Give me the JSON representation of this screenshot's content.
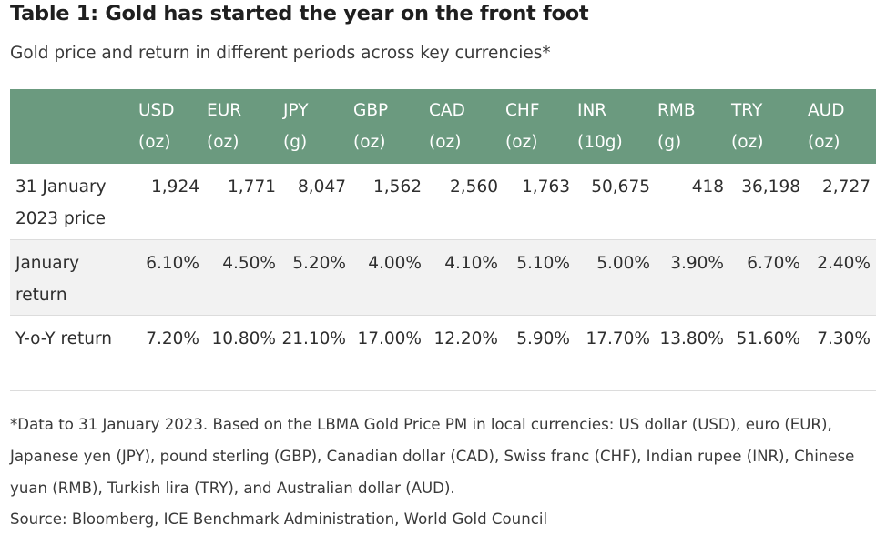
{
  "title": "Table 1: Gold has started the year on the front foot",
  "subtitle": "Gold price and return in different periods across key currencies*",
  "table": {
    "columns": [
      {
        "code": "USD",
        "unit": "(oz)"
      },
      {
        "code": "EUR",
        "unit": "(oz)"
      },
      {
        "code": "JPY",
        "unit": "(g)"
      },
      {
        "code": "GBP",
        "unit": "(oz)"
      },
      {
        "code": "CAD",
        "unit": "(oz)"
      },
      {
        "code": "CHF",
        "unit": "(oz)"
      },
      {
        "code": "INR",
        "unit": "(10g)"
      },
      {
        "code": "RMB",
        "unit": "(g)"
      },
      {
        "code": "TRY",
        "unit": "(oz)"
      },
      {
        "code": "AUD",
        "unit": "(oz)"
      }
    ],
    "rows": [
      {
        "label": "31 January 2023 price",
        "values": [
          "1,924",
          "1,771",
          "8,047",
          "1,562",
          "2,560",
          "1,763",
          "50,675",
          "418",
          "36,198",
          "2,727"
        ]
      },
      {
        "label": "January return",
        "values": [
          "6.10%",
          "4.50%",
          "5.20%",
          "4.00%",
          "4.10%",
          "5.10%",
          "5.00%",
          "3.90%",
          "6.70%",
          "2.40%"
        ]
      },
      {
        "label": "Y-o-Y return",
        "values": [
          "7.20%",
          "10.80%",
          "21.10%",
          "17.00%",
          "12.20%",
          "5.90%",
          "17.70%",
          "13.80%",
          "51.60%",
          "7.30%"
        ]
      }
    ]
  },
  "note": "*Data to 31 January 2023. Based on the LBMA Gold Price PM in local currencies: US dollar (USD), euro (EUR), Japanese yen (JPY), pound sterling (GBP), Canadian dollar (CAD), Swiss franc (CHF), Indian rupee (INR), Chinese yuan (RMB), Turkish lira (TRY), and Australian dollar (AUD).",
  "source": "Source: Bloomberg, ICE Benchmark Administration, World Gold Council",
  "colors": {
    "header_bg": "#6b9a7f",
    "header_text": "#ffffff",
    "alt_row_bg": "#f2f2f2"
  }
}
